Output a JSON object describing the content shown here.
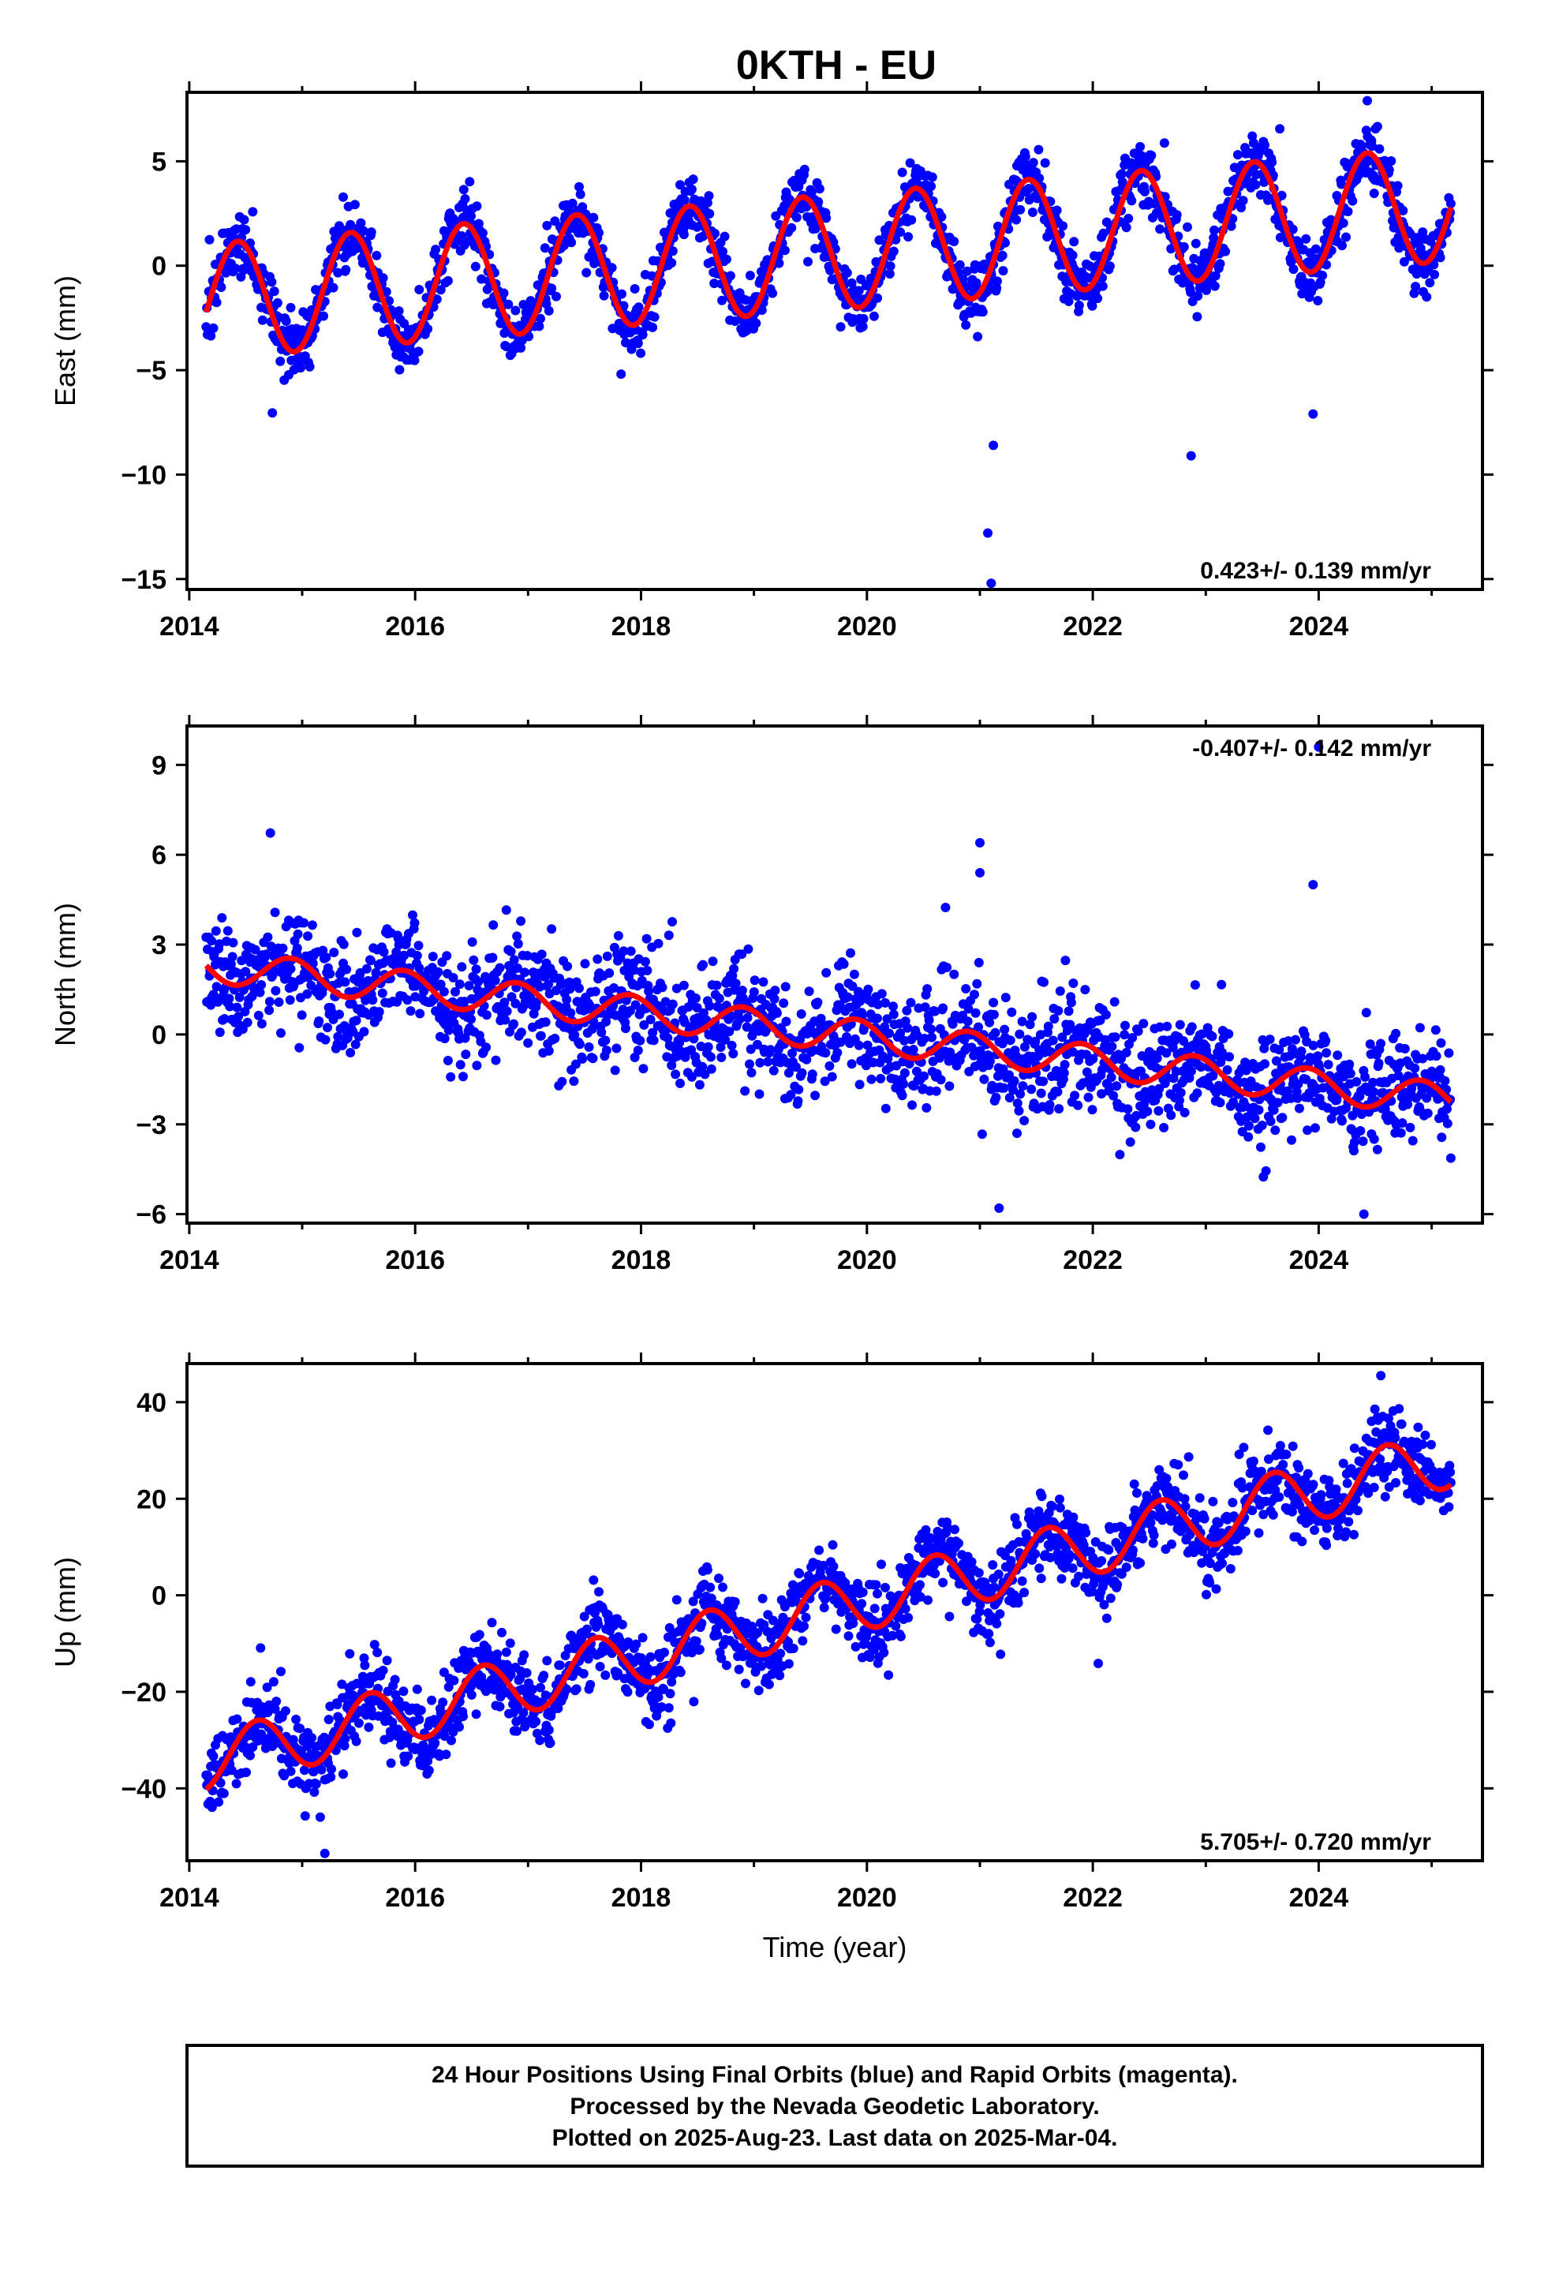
{
  "title": "0KTH - EU",
  "xlabel": "Time (year)",
  "footer": {
    "line1": "24 Hour Positions Using Final Orbits (blue) and Rapid Orbits (magenta).",
    "line2": "Processed by the Nevada Geodetic Laboratory.",
    "line3": "Plotted on 2025-Aug-23. Last data on 2025-Mar-04."
  },
  "colors": {
    "points": "#0000ff",
    "fit": "#ff0000",
    "frame": "#000000"
  },
  "chart_data": [
    {
      "type": "scatter",
      "ylabel": "East (mm)",
      "rate": "0.423+/- 0.139 mm/yr",
      "rate_position": "bottom-right",
      "xlim": [
        2013.98,
        2025.45
      ],
      "ylim": [
        -15.5,
        8.3
      ],
      "xticks": [
        2014,
        2016,
        2018,
        2020,
        2022,
        2024
      ],
      "xtick_labels": [
        "2014",
        "2016",
        "2018",
        "2020",
        "2022",
        "2024"
      ],
      "yticks": [
        5,
        0,
        -5,
        -10,
        -15
      ],
      "ytick_labels": [
        "5",
        "0",
        "−5",
        "−10",
        "−15"
      ],
      "fit": {
        "offset": -1.7,
        "trend": 0.423,
        "amplitude": 2.75,
        "peak_year_fraction": 0.43,
        "start": 2014.15,
        "end": 2025.17
      },
      "scatter_sd": 0.75,
      "outliers": [
        {
          "x": 2021.1,
          "y": -15.2
        },
        {
          "x": 2021.07,
          "y": -12.8
        },
        {
          "x": 2021.12,
          "y": -8.6
        },
        {
          "x": 2022.87,
          "y": -9.1
        },
        {
          "x": 2023.95,
          "y": -7.1
        },
        {
          "x": 2024.43,
          "y": 7.9
        }
      ]
    },
    {
      "type": "scatter",
      "ylabel": "North (mm)",
      "rate": "-0.407+/- 0.142 mm/yr",
      "rate_position": "top-right",
      "xlim": [
        2013.98,
        2025.45
      ],
      "ylim": [
        -6.3,
        10.3
      ],
      "xticks": [
        2014,
        2016,
        2018,
        2020,
        2022,
        2024
      ],
      "xtick_labels": [
        "2014",
        "2016",
        "2018",
        "2020",
        "2022",
        "2024"
      ],
      "yticks": [
        9,
        6,
        3,
        0,
        -3,
        -6
      ],
      "ytick_labels": [
        "9",
        "6",
        "3",
        "0",
        "−3",
        "−6"
      ],
      "fit": {
        "offset": 2.3,
        "trend": -0.407,
        "amplitude": 0.55,
        "peak_year_fraction": 0.9,
        "start": 2014.15,
        "end": 2025.17
      },
      "scatter_sd": 0.95,
      "outliers": [
        {
          "x": 2021.0,
          "y": 6.4
        },
        {
          "x": 2021.0,
          "y": 5.4
        },
        {
          "x": 2023.95,
          "y": 5.0
        },
        {
          "x": 2024.0,
          "y": 9.6
        },
        {
          "x": 2024.4,
          "y": -6.0
        },
        {
          "x": 2021.17,
          "y": -5.8
        }
      ]
    },
    {
      "type": "scatter",
      "ylabel": "Up (mm)",
      "rate": "5.705+/- 0.720 mm/yr",
      "rate_position": "bottom-right",
      "xlim": [
        2013.98,
        2025.45
      ],
      "ylim": [
        -55,
        48
      ],
      "xticks": [
        2014,
        2016,
        2018,
        2020,
        2022,
        2024
      ],
      "xtick_labels": [
        "2014",
        "2016",
        "2018",
        "2020",
        "2022",
        "2024"
      ],
      "yticks": [
        40,
        20,
        0,
        -20,
        -40
      ],
      "ytick_labels": [
        "40",
        "20",
        "0",
        "−20",
        "−40"
      ],
      "fit": {
        "offset": -34.5,
        "trend": 5.705,
        "amplitude": 6.0,
        "peak_year_fraction": 0.6,
        "start": 2014.15,
        "end": 2025.17
      },
      "scatter_sd": 4.2,
      "outliers": [
        {
          "x": 2015.2,
          "y": -53.5
        },
        {
          "x": 2024.55,
          "y": 45.5
        }
      ]
    }
  ]
}
